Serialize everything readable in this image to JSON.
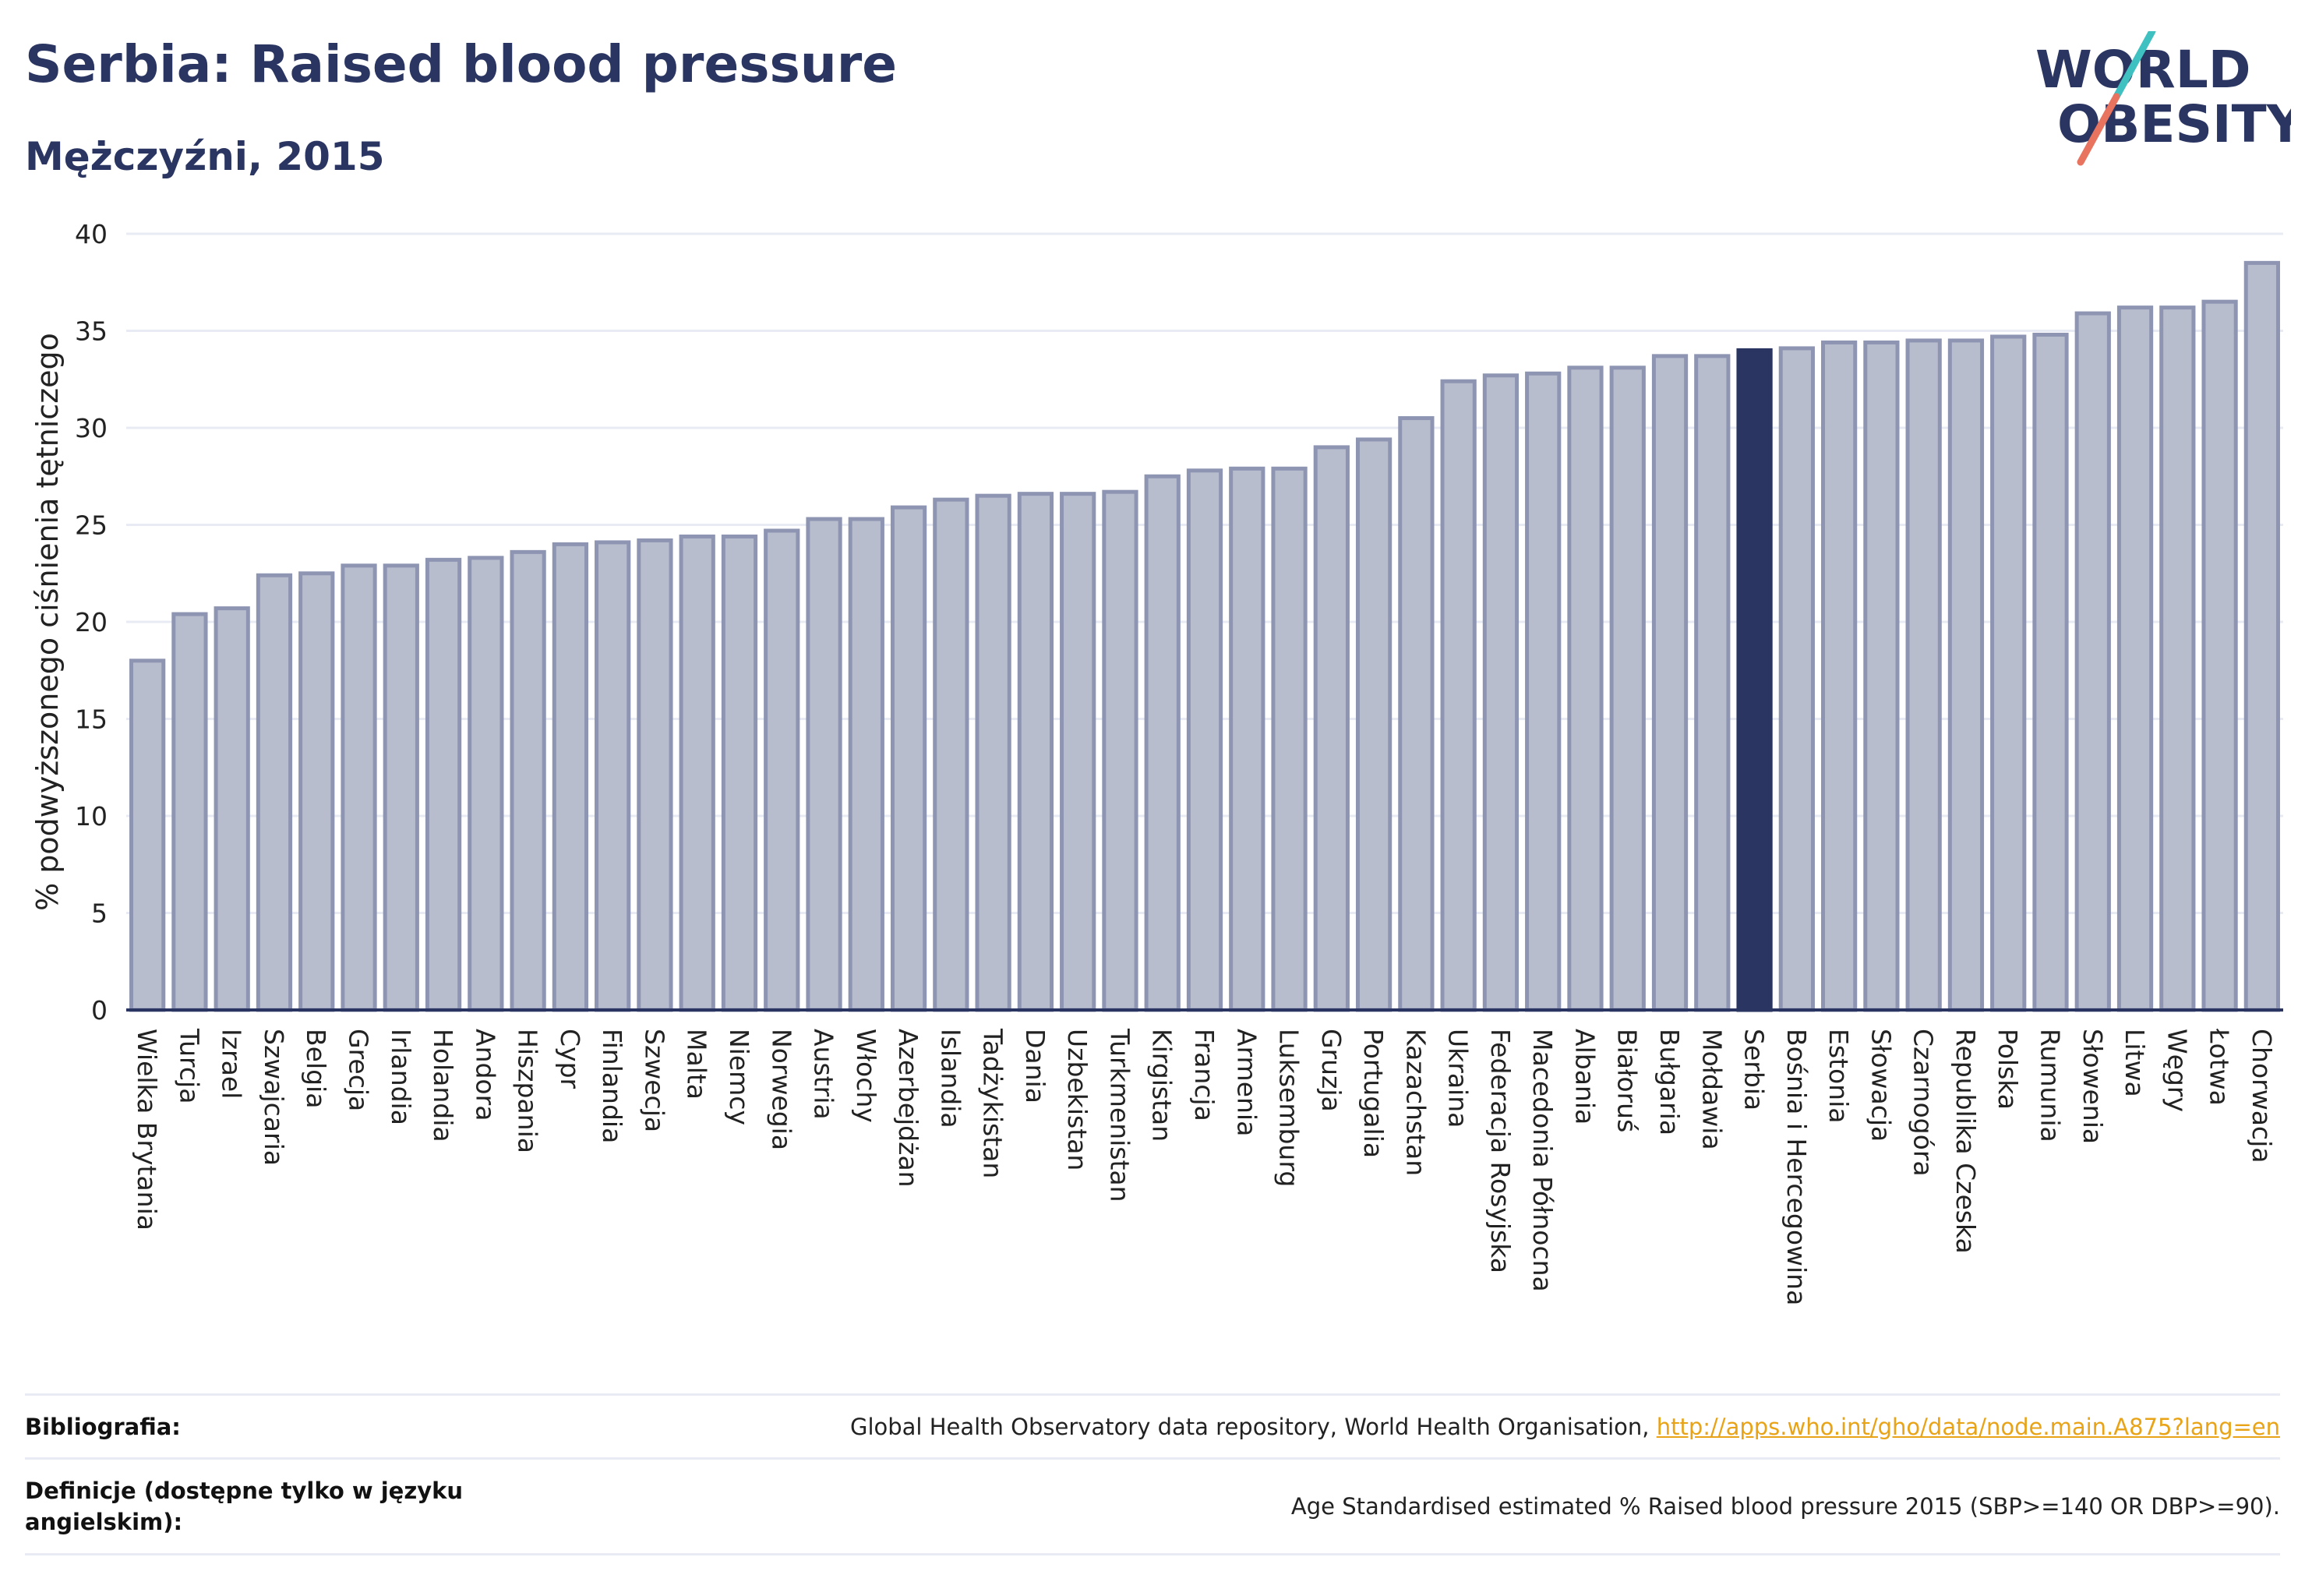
{
  "header": {
    "title": "Serbia: Raised blood pressure",
    "subtitle": "Mężczyźni, 2015"
  },
  "logo": {
    "text_line1": "WORLD",
    "text_line2": "OBESITY",
    "colors": {
      "text": "#2a3561",
      "slash_top": "#3ec1c0",
      "slash_bottom": "#e8735f"
    }
  },
  "colors": {
    "bar_fill": "#b8bdce",
    "bar_stroke": "#8e95b2",
    "highlight_fill": "#2a3561",
    "gridline": "#e8ebf3",
    "axis": "#2a3561"
  },
  "chart_data": {
    "type": "bar",
    "title": "Serbia: Raised blood pressure",
    "subtitle": "Mężczyźni, 2015",
    "xlabel": "",
    "ylabel": "% podwyższonego ciśnienia tętniczego",
    "ylim": [
      0,
      40
    ],
    "yticks": [
      0,
      5,
      10,
      15,
      20,
      25,
      30,
      35,
      40
    ],
    "grid": true,
    "highlight": "Serbia",
    "categories": [
      "Wielka Brytania",
      "Turcja",
      "Izrael",
      "Szwajcaria",
      "Belgia",
      "Grecja",
      "Irlandia",
      "Holandia",
      "Andora",
      "Hiszpania",
      "Cypr",
      "Finlandia",
      "Szwecja",
      "Malta",
      "Niemcy",
      "Norwegia",
      "Austria",
      "Włochy",
      "Azerbejdżan",
      "Islandia",
      "Tadżykistan",
      "Dania",
      "Uzbekistan",
      "Turkmenistan",
      "Kirgistan",
      "Francja",
      "Armenia",
      "Luksemburg",
      "Gruzja",
      "Portugalia",
      "Kazachstan",
      "Ukraina",
      "Federacja Rosyjska",
      "Macedonia Północna",
      "Albania",
      "Białoruś",
      "Bułgaria",
      "Mołdawia",
      "Serbia",
      "Bośnia i Hercegowina",
      "Estonia",
      "Słowacja",
      "Czarnogóra",
      "Republika Czeska",
      "Polska",
      "Rumunia",
      "Słowenia",
      "Litwa",
      "Węgry",
      "Łotwa",
      "Chorwacja"
    ],
    "values": [
      18.0,
      20.4,
      20.7,
      22.4,
      22.5,
      22.9,
      22.9,
      23.2,
      23.3,
      23.6,
      24.0,
      24.1,
      24.2,
      24.4,
      24.4,
      24.7,
      25.3,
      25.3,
      25.9,
      26.3,
      26.5,
      26.6,
      26.6,
      26.7,
      27.5,
      27.8,
      27.9,
      27.9,
      29.0,
      29.4,
      30.5,
      32.4,
      32.7,
      32.8,
      33.1,
      33.1,
      33.7,
      33.7,
      34.0,
      34.1,
      34.4,
      34.4,
      34.5,
      34.5,
      34.7,
      34.8,
      35.9,
      36.2,
      36.2,
      36.5,
      38.5
    ]
  },
  "footer": {
    "bibliography_label": "Bibliografia:",
    "bibliography_text": "Global Health Observatory data repository, World Health Organisation, ",
    "bibliography_link": "http://apps.who.int/gho/data/node.main.A875?lang=en",
    "definitions_label": "Definicje (dostępne tylko w języku angielskim):",
    "definitions_text": "Age Standardised estimated % Raised blood pressure 2015 (SBP>=140 OR DBP>=90)."
  }
}
